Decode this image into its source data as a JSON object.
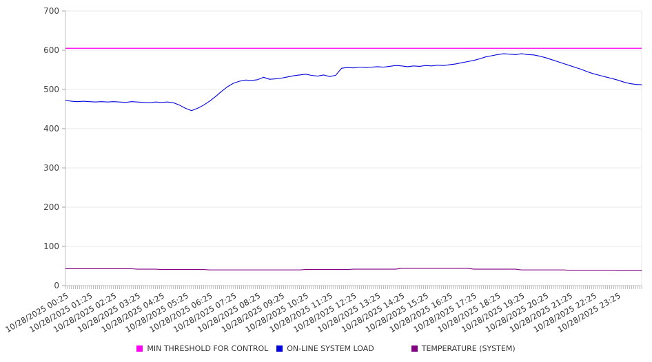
{
  "chart_data": {
    "type": "line",
    "title": "",
    "xlabel": "",
    "ylabel": "",
    "ylim": [
      0,
      700
    ],
    "y_ticks": [
      0,
      100,
      200,
      300,
      400,
      500,
      600,
      700
    ],
    "grid": true,
    "legend_position": "bottom",
    "minor_ticks_per_span": 288,
    "x_tick_labels": [
      "10/28/2025 00:25",
      "10/28/2025 01:25",
      "10/28/2025 02:25",
      "10/28/2025 03:25",
      "10/28/2025 04:25",
      "10/28/2025 05:25",
      "10/28/2025 06:25",
      "10/28/2025 07:25",
      "10/28/2025 08:25",
      "10/28/2025 09:25",
      "10/28/2025 10:25",
      "10/28/2025 11:25",
      "10/28/2025 12:25",
      "10/28/2025 13:25",
      "10/28/2025 14:25",
      "10/28/2025 15:25",
      "10/28/2025 16:25",
      "10/28/2025 17:25",
      "10/28/2025 18:25",
      "10/28/2025 19:25",
      "10/28/2025 20:25",
      "10/28/2025 21:25",
      "10/28/2025 22:25",
      "10/28/2025 23:25"
    ],
    "sample_interval_minutes": 15,
    "series": [
      {
        "name": "MIN THRESHOLD FOR CONTROL",
        "color": "#ff00f0",
        "width": 1.4,
        "values": [
          605
        ]
      },
      {
        "name": "ON-LINE SYSTEM LOAD",
        "color": "#0000dd",
        "width": 1.1,
        "values": [
          472,
          470,
          469,
          470,
          469,
          468,
          469,
          468,
          469,
          468,
          467,
          469,
          468,
          467,
          466,
          468,
          467,
          468,
          466,
          460,
          452,
          446,
          452,
          460,
          470,
          482,
          495,
          507,
          516,
          521,
          524,
          523,
          525,
          531,
          526,
          527,
          529,
          532,
          535,
          537,
          539,
          536,
          534,
          537,
          533,
          536,
          554,
          556,
          555,
          557,
          556,
          557,
          558,
          557,
          559,
          561,
          560,
          558,
          560,
          559,
          561,
          560,
          562,
          561,
          563,
          565,
          568,
          571,
          574,
          578,
          583,
          586,
          589,
          591,
          590,
          589,
          591,
          589,
          588,
          585,
          581,
          576,
          571,
          566,
          561,
          556,
          551,
          545,
          540,
          536,
          532,
          528,
          524,
          519,
          515,
          513,
          512
        ]
      },
      {
        "name": "TEMPERATURE (SYSTEM)",
        "color": "#800080",
        "width": 1.1,
        "values": [
          43,
          43,
          43,
          43,
          43,
          43,
          43,
          43,
          43,
          43,
          43,
          43,
          42,
          42,
          42,
          42,
          41,
          41,
          41,
          41,
          41,
          41,
          41,
          41,
          40,
          40,
          40,
          40,
          40,
          40,
          40,
          40,
          40,
          40,
          40,
          40,
          40,
          40,
          40,
          40,
          41,
          41,
          41,
          41,
          41,
          41,
          41,
          41,
          42,
          42,
          42,
          42,
          42,
          42,
          42,
          42,
          44,
          44,
          44,
          44,
          44,
          44,
          44,
          44,
          44,
          44,
          44,
          44,
          42,
          42,
          42,
          42,
          42,
          42,
          42,
          42,
          40,
          40,
          40,
          40,
          40,
          40,
          40,
          40,
          39,
          39,
          39,
          39,
          39,
          39,
          39,
          39,
          38,
          38,
          38,
          38,
          38
        ]
      }
    ],
    "colors": {
      "grid_line": "#e8e8e8",
      "axis_line": "#c0c0c0",
      "tick_mark": "#a0a0a0",
      "y_label_text": "#444444",
      "x_label_text": "#333333"
    }
  }
}
